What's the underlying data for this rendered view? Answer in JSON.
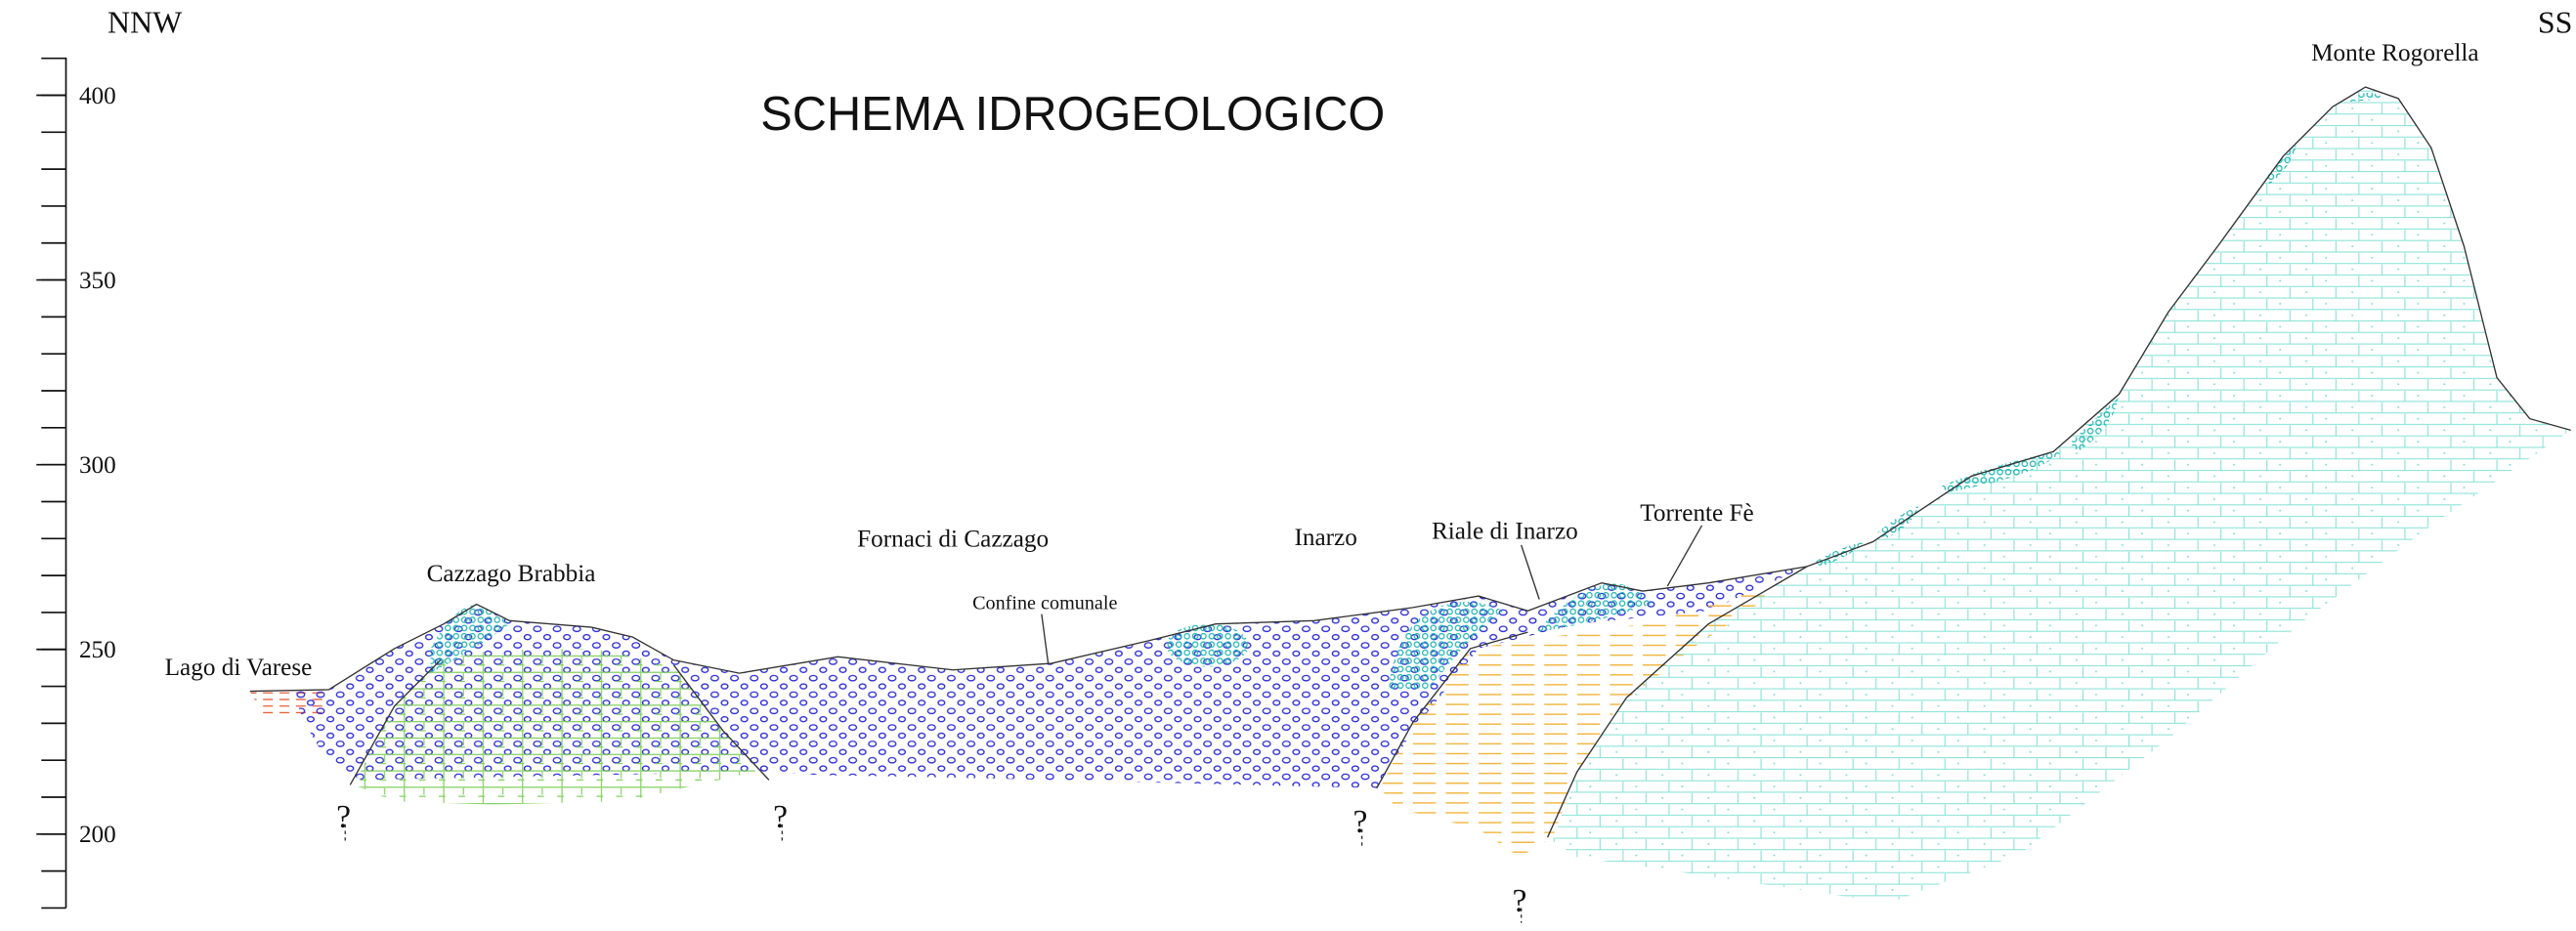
{
  "title": "SCHEMA IDROGEOLOGICO",
  "direction_left": "NNW",
  "direction_right": "SS",
  "elevation_axis": {
    "ticks": [
      400,
      350,
      300,
      250,
      200
    ]
  },
  "labels": {
    "monte_rogorella": "Monte Rogorella",
    "cazzago_brabbia": "Cazzago Brabbia",
    "lago_di_varese": "Lago di Varese",
    "fornaci_di_cazzago": "Fornaci di Cazzago",
    "confine_comunale": "Confine comunale",
    "inarzo": "Inarzo",
    "riale_di_inarzo": "Riale di Inarzo",
    "torrente_fe": "Torrente Fè"
  },
  "unknown_markers": [
    "?",
    "?",
    "?",
    "?"
  ]
}
